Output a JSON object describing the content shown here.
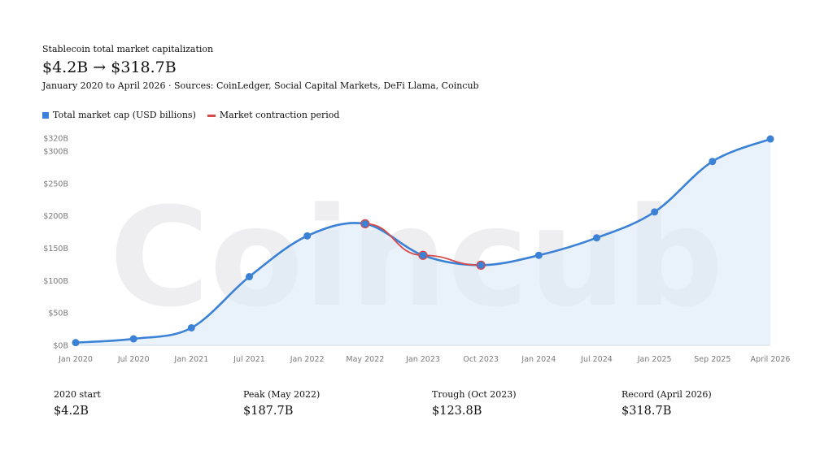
{
  "header": {
    "title": "Stablecoin total market capitalization",
    "headline": "$4.2B → $318.7B",
    "caption": "January 2020 to April 2026 · Sources: CoinLedger, Social Capital Markets, DeFi Llama, Coincub"
  },
  "watermark": "Coincub",
  "legend": {
    "items": [
      {
        "label": "Total market cap (USD billions)",
        "color": "#3b82d6",
        "shape": "square"
      },
      {
        "label": "Market contraction period",
        "color": "#d64a4a",
        "shape": "line"
      }
    ]
  },
  "colors": {
    "series": "#3b82d6",
    "area": "#dde9f8",
    "contraction": "#d64a4a",
    "grid": "#e6e6e6"
  },
  "chart_data": {
    "type": "area",
    "title": "Stablecoin total market capitalization",
    "xlabel": "",
    "ylabel": "",
    "categories": [
      "Jan 2020",
      "Jul 2020",
      "Jan 2021",
      "Jul 2021",
      "Jan 2022",
      "May 2022",
      "Jan 2023",
      "Oct 2023",
      "Jan 2024",
      "Jul 2024",
      "Jan 2025",
      "Sep 2025",
      "April 2026"
    ],
    "series": [
      {
        "name": "Total market cap (USD billions)",
        "values": [
          4.2,
          10,
          27,
          106,
          169,
          187.7,
          139,
          123.8,
          139,
          166,
          206,
          284,
          318.7
        ]
      },
      {
        "name": "Market contraction period",
        "values": [
          null,
          null,
          null,
          null,
          null,
          187.7,
          139,
          123.8,
          null,
          null,
          null,
          null,
          null
        ]
      }
    ],
    "ylim": [
      0,
      320
    ],
    "yticks": [
      0,
      50,
      100,
      150,
      200,
      250,
      300,
      320
    ],
    "ytick_labels": [
      "$0B",
      "$50B",
      "$100B",
      "$150B",
      "$200B",
      "$250B",
      "$300B",
      "$320B"
    ],
    "grid": false,
    "legend_position": "top-left"
  },
  "stats": [
    {
      "label": "2020 start",
      "value": "$4.2B"
    },
    {
      "label": "Peak (May 2022)",
      "value": "$187.7B"
    },
    {
      "label": "Trough (Oct 2023)",
      "value": "$123.8B"
    },
    {
      "label": "Record (April 2026)",
      "value": "$318.7B"
    }
  ]
}
